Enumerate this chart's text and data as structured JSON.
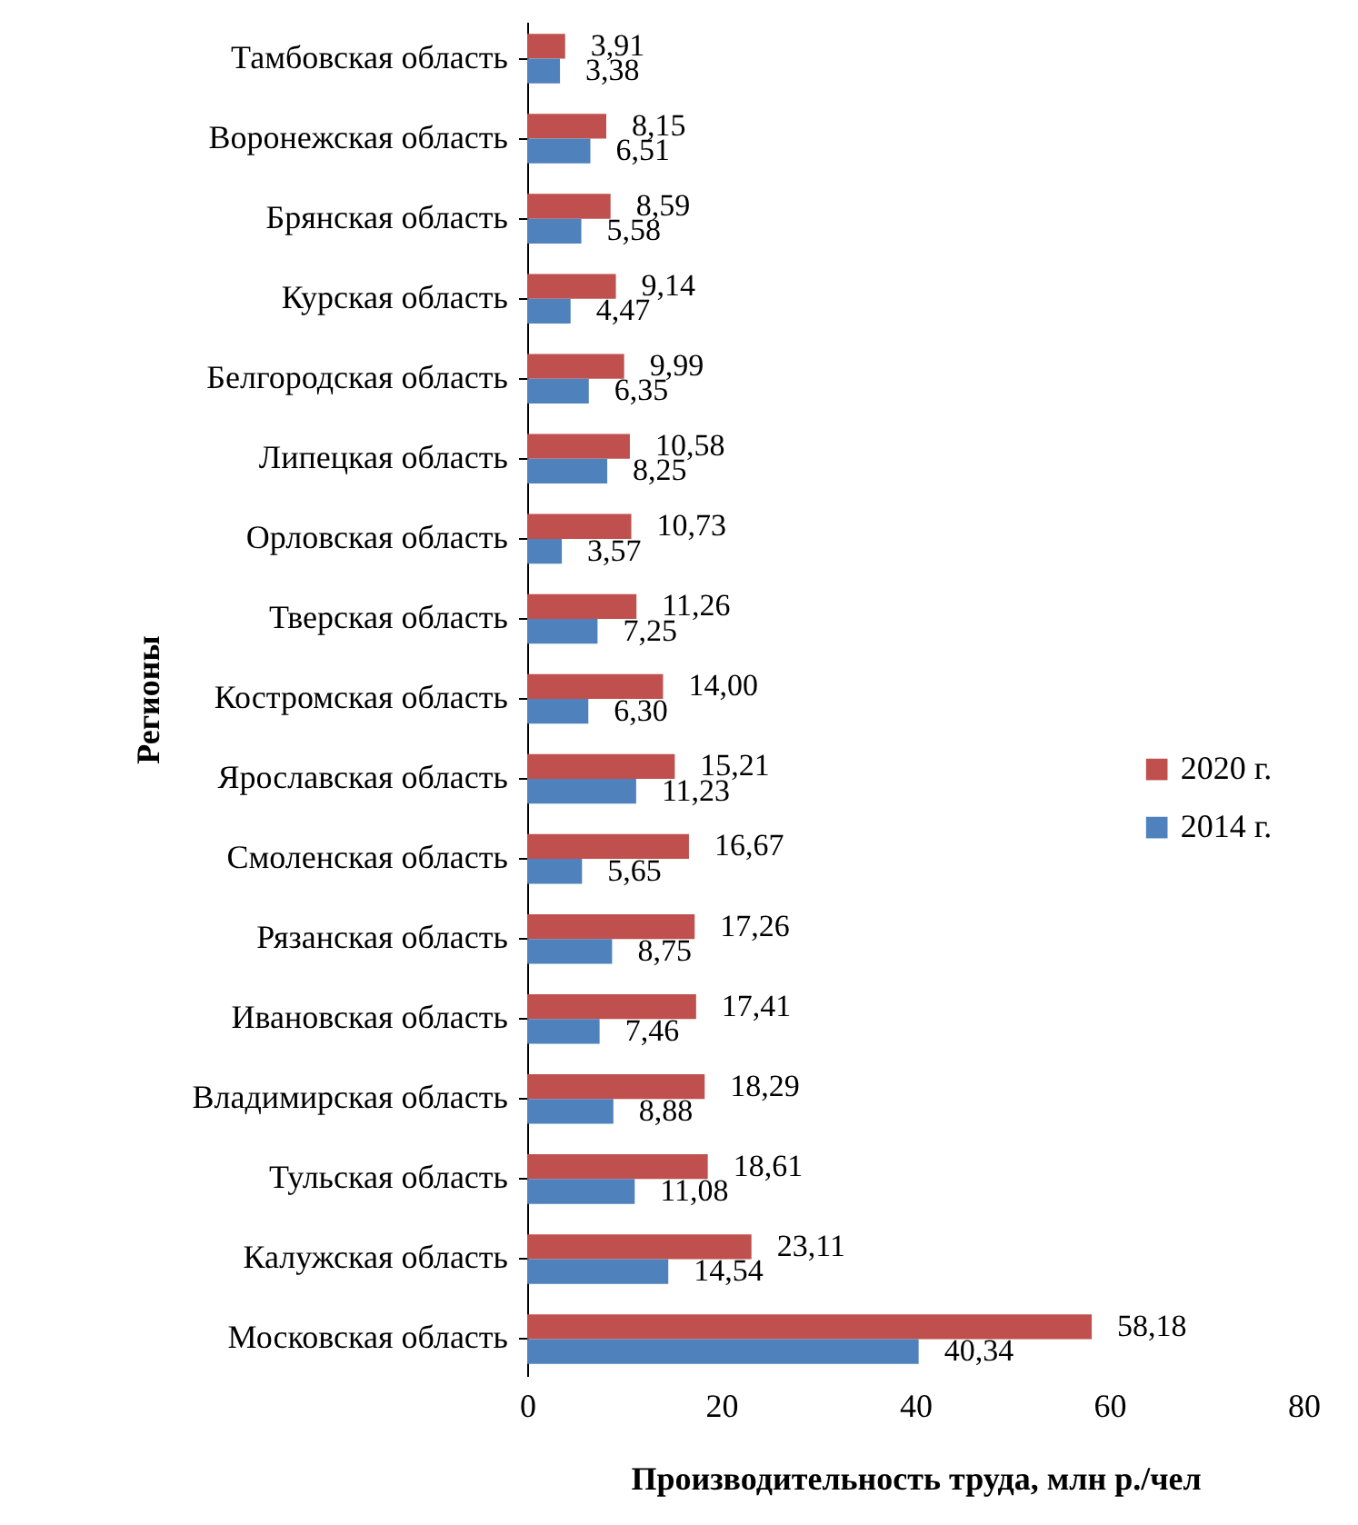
{
  "chart_data": {
    "type": "bar",
    "orientation": "horizontal",
    "xlabel": "Производительность труда, млн р./чел",
    "ylabel": "Регионы",
    "categories": [
      "Тамбовская область",
      "Воронежская область",
      "Брянская область",
      "Курская область",
      "Белгородская область",
      "Липецкая область",
      "Орловская область",
      "Тверская область",
      "Костромская область",
      "Ярославская область",
      "Смоленская область",
      "Рязанская область",
      "Ивановская область",
      "Владимирская область",
      "Тульская область",
      "Калужская область",
      "Московская область"
    ],
    "series": [
      {
        "name": "2020 г.",
        "color": "#c0504d",
        "values": [
          3.91,
          8.15,
          8.59,
          9.14,
          9.99,
          10.58,
          10.73,
          11.26,
          14.0,
          15.21,
          16.67,
          17.26,
          17.41,
          18.29,
          18.61,
          23.11,
          58.18
        ],
        "value_labels": [
          "3,91",
          "8,15",
          "8,59",
          "9,14",
          "9,99",
          "10,58",
          "10,73",
          "11,26",
          "14,00",
          "15,21",
          "16,67",
          "17,26",
          "17,41",
          "18,29",
          "18,61",
          "23,11",
          "58,18"
        ]
      },
      {
        "name": "2014 г.",
        "color": "#4f81bd",
        "values": [
          3.38,
          6.51,
          5.58,
          4.47,
          6.35,
          8.25,
          3.57,
          7.25,
          6.3,
          11.23,
          5.65,
          8.75,
          7.46,
          8.88,
          11.08,
          14.54,
          40.34
        ],
        "value_labels": [
          "3,38",
          "6,51",
          "5,58",
          "4,47",
          "6,35",
          "8,25",
          "3,57",
          "7,25",
          "6,30",
          "11,23",
          "5,65",
          "8,75",
          "7,46",
          "8,88",
          "11,08",
          "14,54",
          "40,34"
        ]
      }
    ],
    "xlim": [
      0,
      80
    ],
    "xticks": [
      0,
      20,
      40,
      60,
      80
    ],
    "grid": false,
    "legend": "right"
  }
}
